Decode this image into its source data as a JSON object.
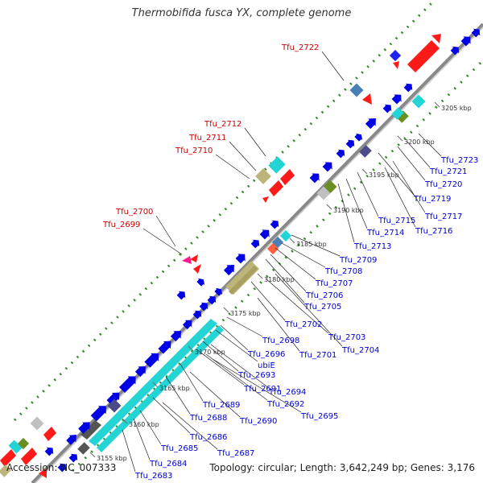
{
  "title": "Thermobifida fusca YX, complete genome",
  "accession": "Accession: NC_007333",
  "topology": "Topology: circular; Length: 3,642,249 bp; Genes: 3,176",
  "colors": {
    "backbone": "#8a8a8a",
    "forward_cds": "#0000e6",
    "rna": "#ff0000",
    "label_red": "#cc0000",
    "label_blue": "#0000cc",
    "gc_dot": "#2e8b20"
  },
  "tick_labels": [
    {
      "id": "3155",
      "text": "3155 kbp"
    },
    {
      "id": "3160",
      "text": "3160 kbp"
    },
    {
      "id": "3165",
      "text": "3165 kbp"
    },
    {
      "id": "3170",
      "text": "3170 kbp"
    },
    {
      "id": "3175",
      "text": "3175 kbp"
    },
    {
      "id": "3180",
      "text": "3180 kbp"
    },
    {
      "id": "3185",
      "text": "3185 kbp"
    },
    {
      "id": "3190",
      "text": "3190 kbp"
    },
    {
      "id": "3195",
      "text": "3195 kbp"
    },
    {
      "id": "3200",
      "text": "3200 kbp"
    },
    {
      "id": "3205",
      "text": "3205 kbp"
    }
  ],
  "gene_labels": {
    "red": [
      "Tfu_2722",
      "Tfu_2712",
      "Tfu_2711",
      "Tfu_2710",
      "Tfu_2700",
      "Tfu_2699"
    ],
    "blue": [
      "Tfu_2723",
      "Tfu_2721",
      "Tfu_2720",
      "Tfu_2719",
      "Tfu_2717",
      "Tfu_2716",
      "Tfu_2715",
      "Tfu_2714",
      "Tfu_2713",
      "Tfu_2709",
      "Tfu_2708",
      "Tfu_2707",
      "Tfu_2706",
      "Tfu_2705",
      "Tfu_2704",
      "Tfu_2703",
      "Tfu_2702",
      "Tfu_2701",
      "Tfu_2698",
      "Tfu_2696",
      "ubiE",
      "Tfu_2693",
      "Tfu_2694",
      "Tfu_2691",
      "Tfu_2692",
      "Tfu_2695",
      "Tfu_2689",
      "Tfu_2690",
      "Tfu_2688",
      "Tfu_2686",
      "Tfu_2685",
      "Tfu_2687",
      "Tfu_2684",
      "Tfu_2683"
    ]
  }
}
